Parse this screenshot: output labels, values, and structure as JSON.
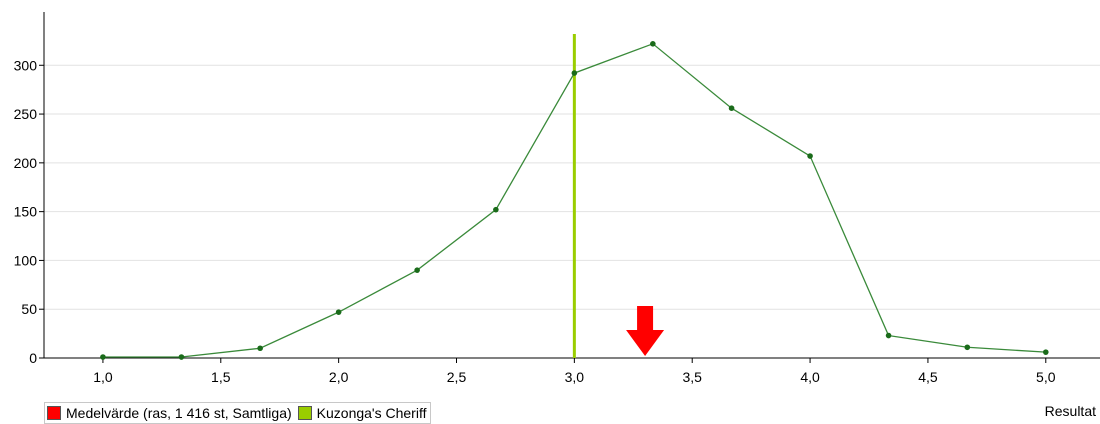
{
  "chart_data": {
    "type": "line",
    "x": [
      1.0,
      1.333,
      1.667,
      2.0,
      2.333,
      2.667,
      3.0,
      3.333,
      3.667,
      4.0,
      4.333,
      4.667,
      5.0
    ],
    "series": [
      {
        "values": [
          1,
          1,
          10,
          47,
          90,
          152,
          292,
          322,
          256,
          207,
          23,
          11,
          6
        ],
        "color": "#3a8a3a"
      }
    ],
    "xlim": [
      0.75,
      5.23
    ],
    "ylim": [
      0,
      330
    ],
    "x_ticks": [
      "1,0",
      "1,5",
      "2,0",
      "2,5",
      "3,0",
      "3,5",
      "4,0",
      "4,5",
      "5,0"
    ],
    "x_tick_values": [
      1.0,
      1.5,
      2.0,
      2.5,
      3.0,
      3.5,
      4.0,
      4.5,
      5.0
    ],
    "y_ticks": [
      "0",
      "50",
      "100",
      "150",
      "200",
      "250",
      "300"
    ],
    "y_tick_values": [
      0,
      50,
      100,
      150,
      200,
      250,
      300
    ],
    "grid": true,
    "xlabel": "Resultat",
    "vertical_marker": {
      "x": 3.0,
      "color": "#9acd00"
    },
    "mean_marker": {
      "x": 3.3,
      "color": "#ff0000"
    },
    "legend": [
      {
        "label": "Medelvärde (ras, 1 416 st, Samtliga)",
        "color": "#ff0000"
      },
      {
        "label": "Kuzonga's Cheriff",
        "color": "#9acd00"
      }
    ]
  }
}
